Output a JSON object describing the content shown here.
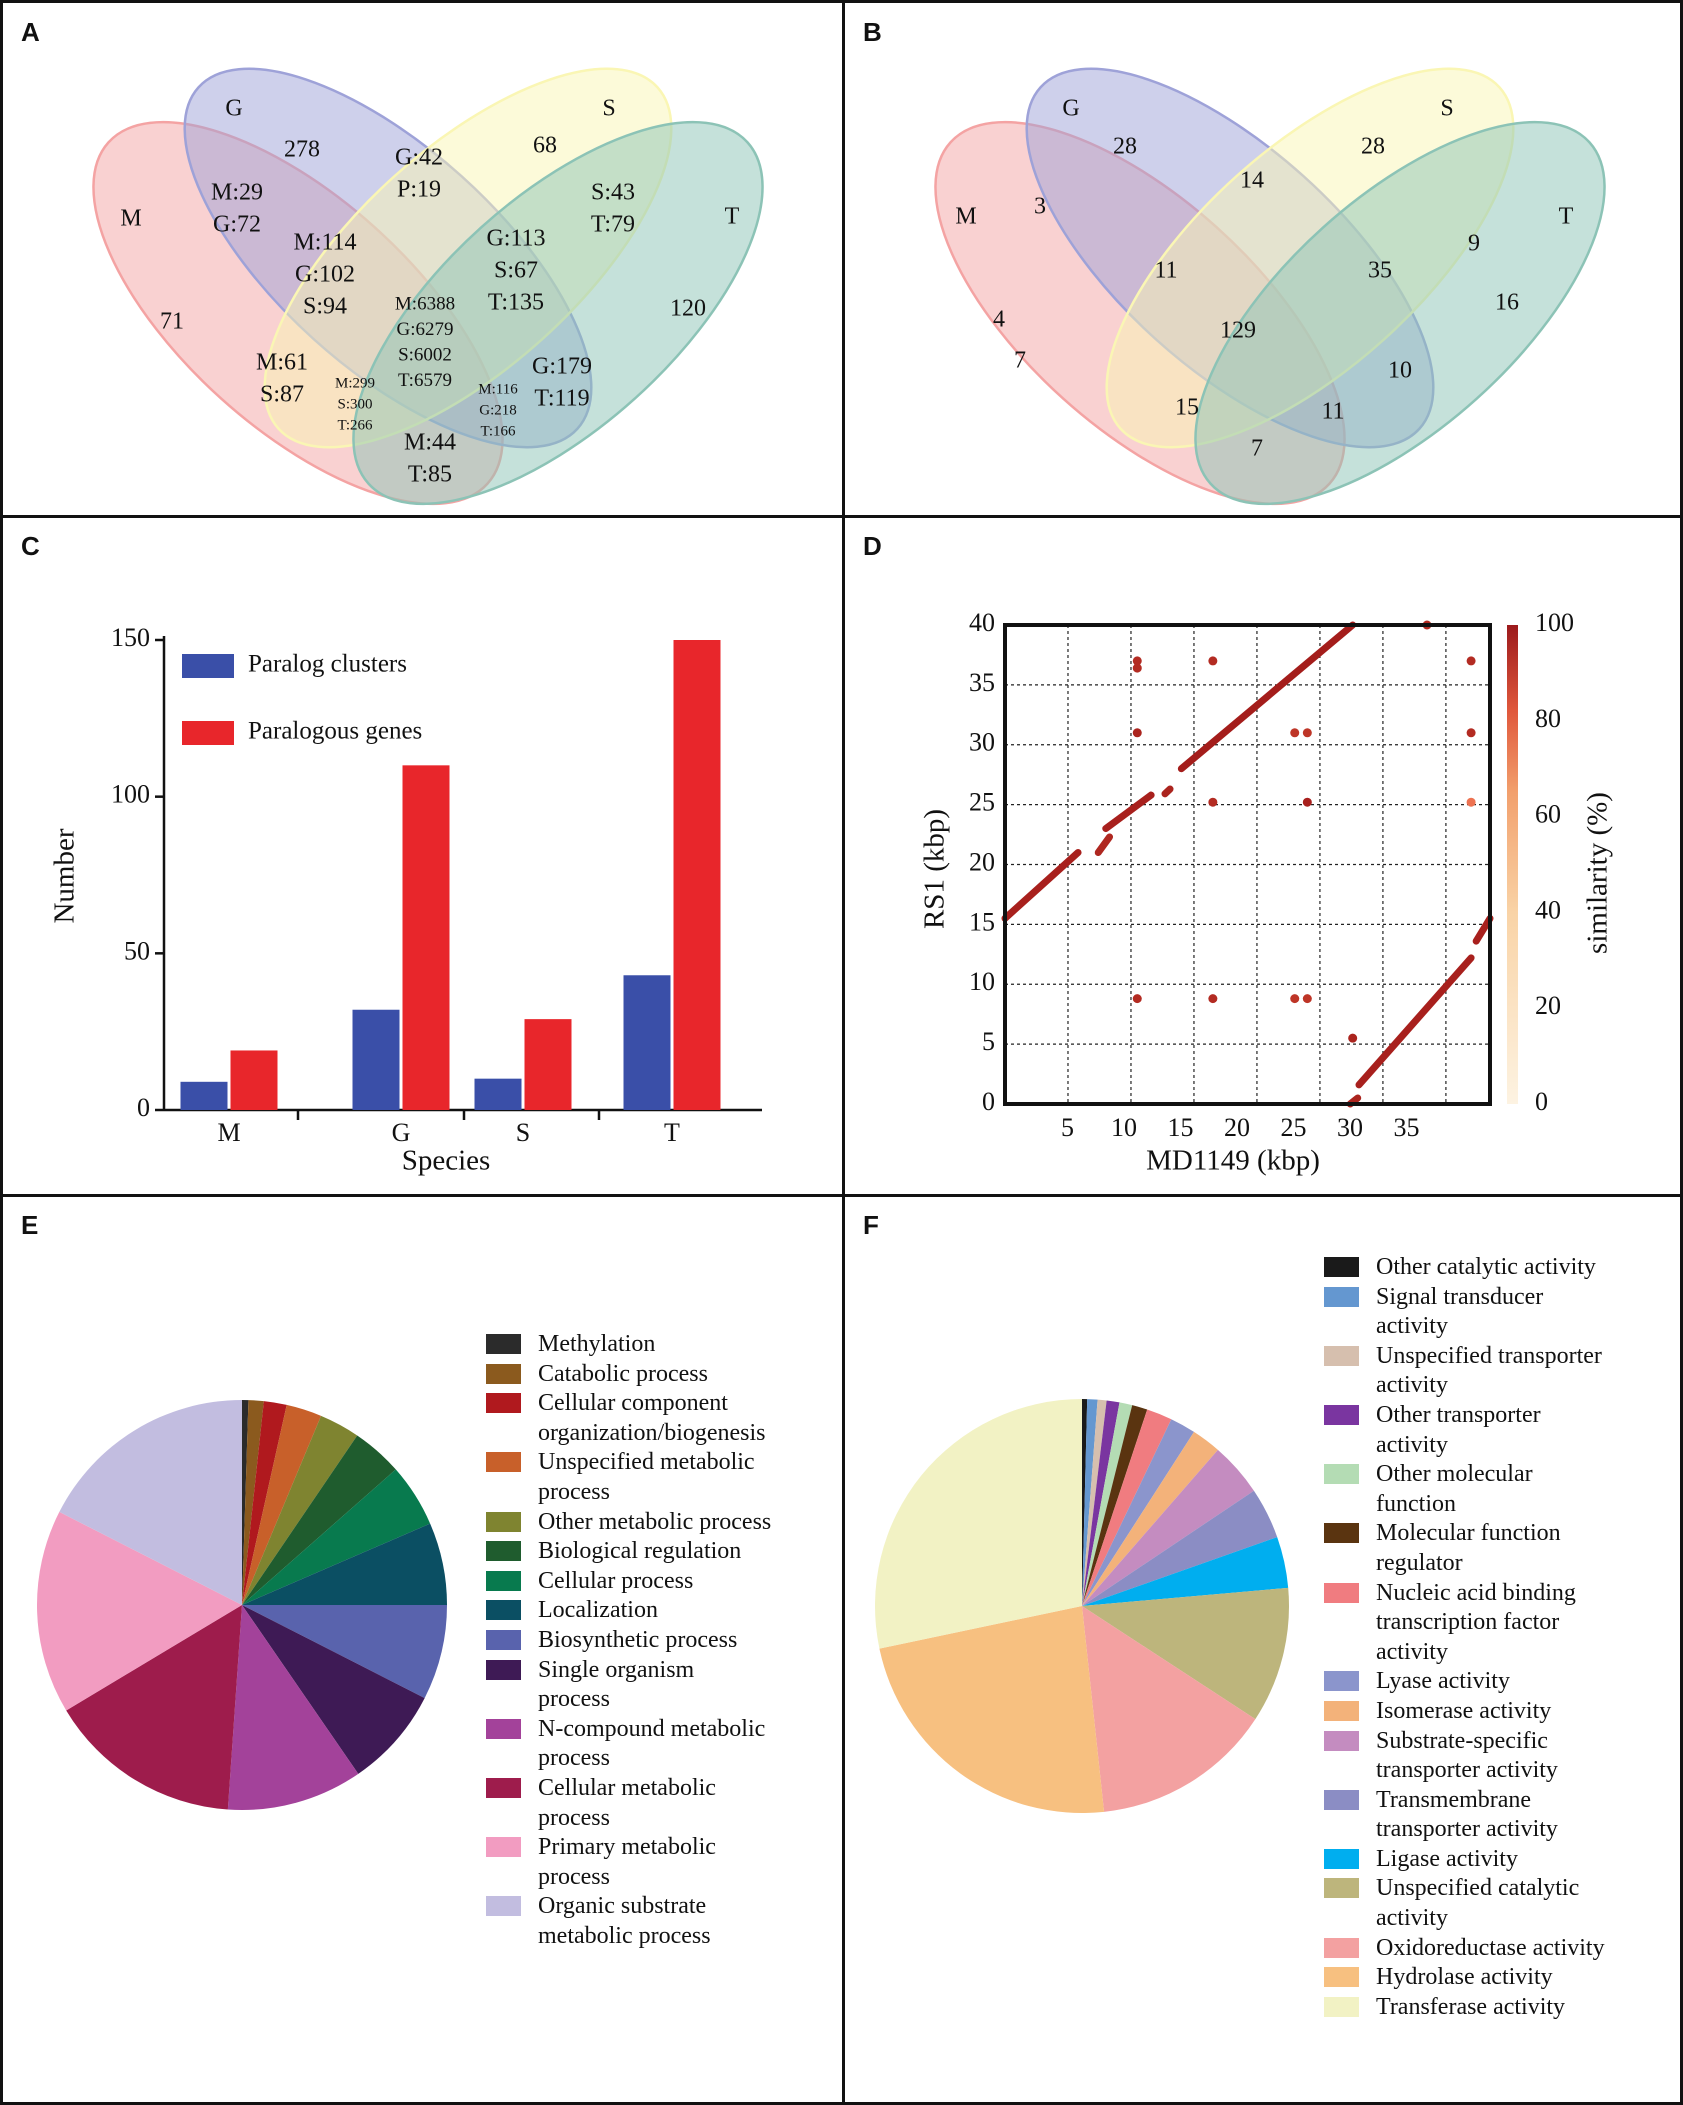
{
  "panels": {
    "A": "A",
    "B": "B",
    "C": "C",
    "D": "D",
    "E": "E",
    "F": "F"
  },
  "chart_data": [
    {
      "id": "A",
      "type": "venn",
      "sets": [
        {
          "key": "M",
          "label": "M",
          "color": "#f4a3a3"
        },
        {
          "key": "G",
          "label": "G",
          "color": "#9ea2d8"
        },
        {
          "key": "S",
          "label": "S",
          "color": "#faf6b4"
        },
        {
          "key": "T",
          "label": "T",
          "color": "#8cc3b6"
        }
      ],
      "regions": [
        {
          "region": "G",
          "lines": [
            "278"
          ]
        },
        {
          "region": "S",
          "lines": [
            "68"
          ]
        },
        {
          "region": "M",
          "lines": [
            "71"
          ]
        },
        {
          "region": "T",
          "lines": [
            "120"
          ]
        },
        {
          "region": "MG",
          "lines": [
            "M:29",
            "G:72"
          ]
        },
        {
          "region": "GS",
          "lines": [
            "G:42",
            "P:19"
          ]
        },
        {
          "region": "ST",
          "lines": [
            "S:43",
            "T:79"
          ]
        },
        {
          "region": "MGS",
          "lines": [
            "M:114",
            "G:102",
            "S:94"
          ]
        },
        {
          "region": "GST",
          "lines": [
            "G:113",
            "S:67",
            "T:135"
          ]
        },
        {
          "region": "MGST",
          "lines": [
            "M:6388",
            "G:6279",
            "S:6002",
            "T:6579"
          ]
        },
        {
          "region": "MS",
          "lines": [
            "M:61",
            "S:87"
          ]
        },
        {
          "region": "MST",
          "lines": [
            "M:299",
            "S:300",
            "T:266"
          ]
        },
        {
          "region": "MGT",
          "lines": [
            "M:116",
            "G:218",
            "T:166"
          ]
        },
        {
          "region": "GT",
          "lines": [
            "G:179",
            "T:119"
          ]
        },
        {
          "region": "MT",
          "lines": [
            "M:44",
            "T:85"
          ]
        }
      ]
    },
    {
      "id": "B",
      "type": "venn",
      "sets": [
        {
          "key": "M",
          "label": "M",
          "color": "#f4a3a3"
        },
        {
          "key": "G",
          "label": "G",
          "color": "#9ea2d8"
        },
        {
          "key": "S",
          "label": "S",
          "color": "#faf6b4"
        },
        {
          "key": "T",
          "label": "T",
          "color": "#8cc3b6"
        }
      ],
      "regions": [
        {
          "region": "G",
          "lines": [
            "28"
          ]
        },
        {
          "region": "S",
          "lines": [
            "28"
          ]
        },
        {
          "region": "M",
          "lines": [
            "4"
          ]
        },
        {
          "region": "T",
          "lines": [
            "16"
          ]
        },
        {
          "region": "MG",
          "lines": [
            "3"
          ]
        },
        {
          "region": "GS",
          "lines": [
            "14"
          ]
        },
        {
          "region": "ST",
          "lines": [
            "9"
          ]
        },
        {
          "region": "MGS",
          "lines": [
            "11"
          ]
        },
        {
          "region": "GST",
          "lines": [
            "35"
          ]
        },
        {
          "region": "MGST",
          "lines": [
            "129"
          ]
        },
        {
          "region": "MS",
          "lines": [
            "7"
          ]
        },
        {
          "region": "GT",
          "lines": [
            "10"
          ]
        },
        {
          "region": "MST",
          "lines": [
            "15"
          ]
        },
        {
          "region": "MGT",
          "lines": [
            "11"
          ]
        },
        {
          "region": "MT",
          "lines": [
            "7"
          ]
        }
      ]
    },
    {
      "id": "C",
      "type": "bar",
      "categories": [
        "M",
        "G",
        "S",
        "T"
      ],
      "series": [
        {
          "name": "Paralog clusters",
          "color": "#3a4fa8",
          "values": [
            9,
            32,
            10,
            43
          ]
        },
        {
          "name": "Paralogous genes",
          "color": "#e8262b",
          "values": [
            19,
            110,
            29,
            150
          ]
        }
      ],
      "xlabel": "Species",
      "ylabel": "Number",
      "ylim": [
        0,
        150
      ],
      "yticks": [
        0,
        50,
        100,
        150
      ],
      "legend": "top-left"
    },
    {
      "id": "D",
      "type": "scatter",
      "xlabel": "MD1149 (kbp)",
      "ylabel": "RS1 (kbp)",
      "xlim": [
        0,
        38.5
      ],
      "ylim": [
        0,
        40
      ],
      "xticks": [
        5,
        10,
        15,
        20,
        25,
        30,
        35
      ],
      "yticks": [
        0,
        5,
        10,
        15,
        20,
        25,
        30,
        35,
        40
      ],
      "grid": true,
      "colorbar": {
        "label": "similarity (%)",
        "ticks": [
          0,
          20,
          40,
          60,
          80,
          100
        ]
      },
      "segments": [
        {
          "x": [
            0,
            5.8
          ],
          "y": [
            15.5,
            21
          ],
          "similarity": 98
        },
        {
          "x": [
            7.4,
            8.3
          ],
          "y": [
            21,
            22.3
          ],
          "similarity": 96
        },
        {
          "x": [
            8,
            11.6
          ],
          "y": [
            23,
            25.8
          ],
          "similarity": 98
        },
        {
          "x": [
            12.7,
            13.1
          ],
          "y": [
            25.9,
            26.3
          ],
          "similarity": 97
        },
        {
          "x": [
            14,
            27.6
          ],
          "y": [
            28,
            40
          ],
          "similarity": 99
        },
        {
          "x": [
            27.4,
            28
          ],
          "y": [
            0,
            0.5
          ],
          "similarity": 97
        },
        {
          "x": [
            28.1,
            37
          ],
          "y": [
            1.6,
            12.2
          ],
          "similarity": 98
        },
        {
          "x": [
            37.4,
            38.5
          ],
          "y": [
            13.6,
            15.5
          ],
          "similarity": 98
        }
      ],
      "points": [
        {
          "x": 10.5,
          "y": 37,
          "similarity": 95
        },
        {
          "x": 10.5,
          "y": 36.4,
          "similarity": 95
        },
        {
          "x": 16.5,
          "y": 37,
          "similarity": 95
        },
        {
          "x": 37,
          "y": 37,
          "similarity": 95
        },
        {
          "x": 33.5,
          "y": 40,
          "similarity": 95
        },
        {
          "x": 10.5,
          "y": 31,
          "similarity": 97
        },
        {
          "x": 23,
          "y": 31,
          "similarity": 92
        },
        {
          "x": 24,
          "y": 31,
          "similarity": 92
        },
        {
          "x": 37,
          "y": 31,
          "similarity": 95
        },
        {
          "x": 16.5,
          "y": 25.2,
          "similarity": 95
        },
        {
          "x": 24,
          "y": 25.2,
          "similarity": 98
        },
        {
          "x": 37,
          "y": 25.2,
          "similarity": 70
        },
        {
          "x": 10.5,
          "y": 8.8,
          "similarity": 95
        },
        {
          "x": 16.5,
          "y": 8.8,
          "similarity": 95
        },
        {
          "x": 23,
          "y": 8.8,
          "similarity": 92
        },
        {
          "x": 24,
          "y": 8.8,
          "similarity": 92
        },
        {
          "x": 27.6,
          "y": 5.5,
          "similarity": 97
        }
      ]
    },
    {
      "id": "E",
      "type": "pie",
      "legend": "right",
      "slices": [
        {
          "label": "Methylation",
          "value": 0.5,
          "color": "#2b2b2b"
        },
        {
          "label": "Catabolic process",
          "value": 1.2,
          "color": "#8b5a1e"
        },
        {
          "label": "Cellular component organization/biogenesis",
          "lines": [
            "Cellular component",
            "organization/biogenesis"
          ],
          "value": 1.8,
          "color": "#b0191e"
        },
        {
          "label": "Unspecified metabolic process",
          "lines": [
            "Unspecified metabolic",
            "process"
          ],
          "value": 2.8,
          "color": "#c8602a"
        },
        {
          "label": "Other metabolic process",
          "value": 3.2,
          "color": "#7f8430"
        },
        {
          "label": "Biological regulation",
          "value": 4.0,
          "color": "#1f5c2e"
        },
        {
          "label": "Cellular process",
          "value": 5.0,
          "color": "#087a4e"
        },
        {
          "label": "Localization",
          "value": 6.5,
          "color": "#0b4f63"
        },
        {
          "label": "Biosynthetic process",
          "value": 7.5,
          "color": "#5963ad"
        },
        {
          "label": "Single organism process",
          "lines": [
            "Single organism",
            "process"
          ],
          "value": 7.9,
          "color": "#3e1a55"
        },
        {
          "label": "N-compound metabolic process",
          "lines": [
            "N-compound metabolic",
            "process"
          ],
          "value": 10.7,
          "color": "#a3429a"
        },
        {
          "label": "Cellular metabolic process",
          "lines": [
            "Cellular metabolic",
            "process"
          ],
          "value": 15.3,
          "color": "#9e1c4c"
        },
        {
          "label": "Primary metabolic process",
          "lines": [
            "Primary metabolic",
            "process"
          ],
          "value": 16.1,
          "color": "#f29cc1"
        },
        {
          "label": "Organic substrate metabolic process",
          "lines": [
            "Organic substrate",
            "metabolic process"
          ],
          "value": 17.5,
          "color": "#c2bde0"
        }
      ]
    },
    {
      "id": "F",
      "type": "pie",
      "legend": "right",
      "slices": [
        {
          "label": "Other catalytic activity",
          "value": 0.4,
          "color": "#1a1a1a"
        },
        {
          "label": "Signal transducer activity",
          "lines": [
            "Signal transducer",
            "activity"
          ],
          "value": 0.8,
          "color": "#6497d0"
        },
        {
          "label": "Unspecified transporter activity",
          "lines": [
            "Unspecified transporter",
            "activity"
          ],
          "value": 0.7,
          "color": "#d6bfae"
        },
        {
          "label": "Other transporter activity",
          "lines": [
            "Other transporter",
            "activity"
          ],
          "value": 1.0,
          "color": "#7a35a0"
        },
        {
          "label": "Other molecular function",
          "lines": [
            "Other molecular",
            "function"
          ],
          "value": 1.0,
          "color": "#b4dcb4"
        },
        {
          "label": "Molecular function regulator",
          "lines": [
            "Molecular function",
            "regulator"
          ],
          "value": 1.2,
          "color": "#5a3410"
        },
        {
          "label": "Nucleic acid binding transcription factor activity",
          "lines": [
            "Nucleic acid binding",
            "transcription factor",
            "activity"
          ],
          "value": 2.0,
          "color": "#f07c80"
        },
        {
          "label": "Lyase activity",
          "value": 2.0,
          "color": "#8b95cc"
        },
        {
          "label": "Isomerase activity",
          "value": 2.3,
          "color": "#f3b27a"
        },
        {
          "label": "Substrate-specific transporter activity",
          "lines": [
            "Substrate-specific",
            "transporter activity"
          ],
          "value": 4.2,
          "color": "#c48cc0"
        },
        {
          "label": "Transmembrane transporter activity",
          "lines": [
            "Transmembrane",
            "transporter activity"
          ],
          "value": 4.0,
          "color": "#8b8dc4"
        },
        {
          "label": "Ligase activity",
          "value": 4.0,
          "color": "#00aeef"
        },
        {
          "label": "Unspecified catalytic activity",
          "lines": [
            "Unspecified catalytic",
            "activity"
          ],
          "value": 10.6,
          "color": "#bdb57c"
        },
        {
          "label": "Oxidoreductase activity",
          "value": 14.1,
          "color": "#f3a1a1"
        },
        {
          "label": "Hydrolase activity",
          "value": 23.4,
          "color": "#f7c080"
        },
        {
          "label": "Transferase activity",
          "value": 28.3,
          "color": "#f2f2c4"
        }
      ]
    }
  ]
}
